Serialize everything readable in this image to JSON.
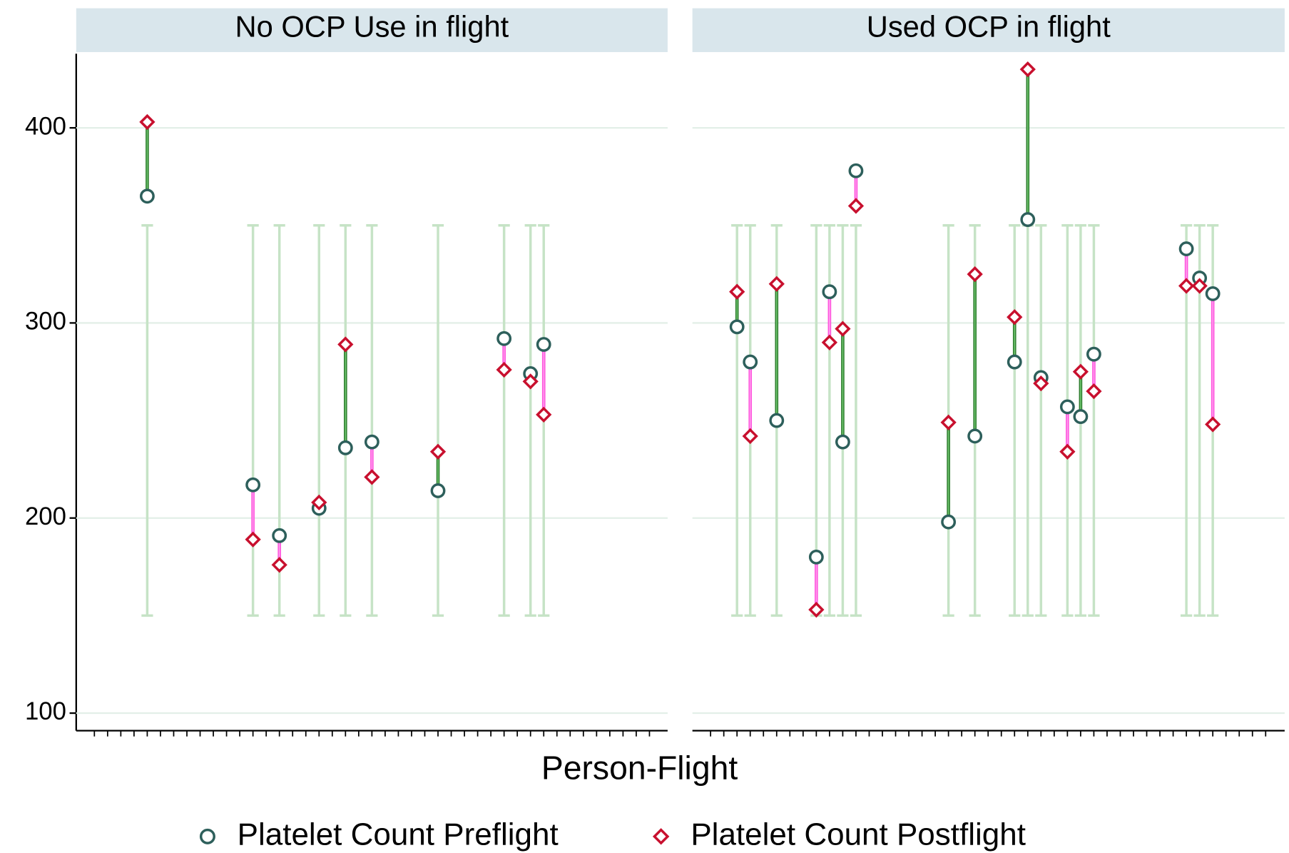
{
  "chart_data": {
    "type": "dropline",
    "x_label": "Person-Flight",
    "ylim": [
      91,
      438
    ],
    "yticks": [
      100,
      200,
      300,
      400
    ],
    "grid": true,
    "reference_range": [
      150,
      350
    ],
    "facets": [
      {
        "title": "No OCP Use in flight",
        "categories": [
          null,
          null,
          null,
          null,
          null,
          null,
          null,
          null,
          null,
          null,
          null,
          null,
          null,
          null,
          null,
          null,
          null,
          null,
          null,
          null,
          null,
          null,
          null,
          null,
          null,
          null,
          null,
          null,
          null,
          null,
          null,
          null,
          null,
          null,
          null,
          null,
          null,
          null,
          null,
          null,
          null,
          null,
          null
        ],
        "series": [
          {
            "name": "Platelet Count Preflight",
            "color": "#2d5f5b",
            "marker": "circle",
            "values": [
              null,
              null,
              null,
              null,
              365,
              null,
              null,
              null,
              null,
              null,
              null,
              null,
              217,
              null,
              191,
              null,
              null,
              205,
              null,
              236,
              null,
              239,
              null,
              null,
              null,
              null,
              214,
              null,
              null,
              null,
              null,
              292,
              null,
              274,
              289,
              null,
              null,
              null,
              null,
              null,
              null,
              null,
              null
            ]
          },
          {
            "name": "Platelet Count Postflight",
            "color": "#c8102e",
            "marker": "diamond",
            "values": [
              null,
              null,
              null,
              null,
              403,
              null,
              null,
              null,
              null,
              null,
              null,
              null,
              189,
              null,
              176,
              null,
              null,
              208,
              null,
              289,
              null,
              221,
              null,
              null,
              null,
              null,
              234,
              null,
              null,
              null,
              null,
              276,
              null,
              270,
              253,
              null,
              null,
              null,
              null,
              null,
              null,
              null,
              null
            ]
          }
        ]
      },
      {
        "title": "Used OCP in flight",
        "categories": [
          null,
          null,
          null,
          null,
          null,
          null,
          null,
          null,
          null,
          null,
          null,
          null,
          null,
          null,
          null,
          null,
          null,
          null,
          null,
          null,
          null,
          null,
          null,
          null,
          null,
          null,
          null,
          null,
          null,
          null,
          null,
          null,
          null,
          null,
          null,
          null,
          null,
          null,
          null,
          null,
          null,
          null,
          null
        ],
        "series": [
          {
            "name": "Platelet Count Preflight",
            "color": "#2d5f5b",
            "marker": "circle",
            "values": [
              null,
              null,
              298,
              280,
              null,
              250,
              null,
              null,
              180,
              316,
              239,
              378,
              null,
              null,
              null,
              null,
              null,
              null,
              198,
              null,
              242,
              null,
              null,
              280,
              353,
              272,
              null,
              257,
              252,
              284,
              null,
              null,
              null,
              null,
              null,
              null,
              338,
              323,
              315,
              null,
              null,
              null,
              null
            ]
          },
          {
            "name": "Platelet Count Postflight",
            "color": "#c8102e",
            "marker": "diamond",
            "values": [
              null,
              null,
              316,
              242,
              null,
              320,
              null,
              null,
              153,
              290,
              297,
              360,
              null,
              null,
              null,
              null,
              null,
              null,
              249,
              null,
              325,
              null,
              null,
              303,
              430,
              269,
              null,
              234,
              275,
              265,
              null,
              null,
              null,
              null,
              null,
              null,
              319,
              319,
              248,
              null,
              null,
              null,
              null
            ]
          }
        ]
      }
    ]
  }
}
